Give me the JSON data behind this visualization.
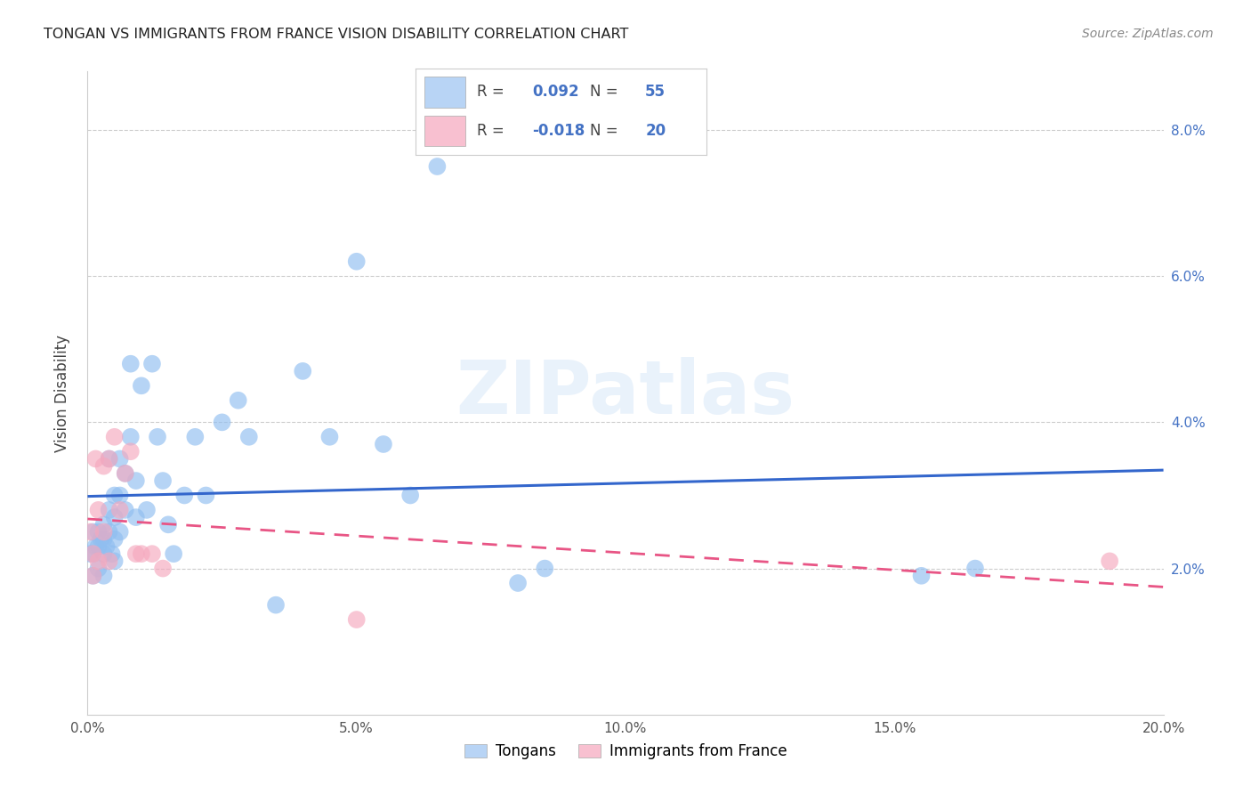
{
  "title": "TONGAN VS IMMIGRANTS FROM FRANCE VISION DISABILITY CORRELATION CHART",
  "source": "Source: ZipAtlas.com",
  "ylabel": "Vision Disability",
  "xlim": [
    0.0,
    0.2
  ],
  "ylim": [
    0.0,
    0.088
  ],
  "xticks": [
    0.0,
    0.05,
    0.1,
    0.15,
    0.2
  ],
  "xtick_labels": [
    "0.0%",
    "5.0%",
    "10.0%",
    "15.0%",
    "20.0%"
  ],
  "yticks": [
    0.0,
    0.02,
    0.04,
    0.06,
    0.08
  ],
  "ytick_labels_left": [
    "",
    "",
    "",
    "",
    ""
  ],
  "ytick_labels_right": [
    "",
    "2.0%",
    "4.0%",
    "6.0%",
    "8.0%"
  ],
  "blue_scatter_color": "#90BEF0",
  "pink_scatter_color": "#F5A8BE",
  "blue_line_color": "#3366CC",
  "pink_line_color": "#E85585",
  "legend_blue_fill": "#B8D4F5",
  "legend_pink_fill": "#F8C0D0",
  "R_blue": "0.092",
  "N_blue": "55",
  "R_pink": "-0.018",
  "N_pink": "20",
  "watermark": "ZIPatlas",
  "grid_color": "#CCCCCC",
  "background": "#FFFFFF",
  "tongans_x": [
    0.0005,
    0.001,
    0.001,
    0.001,
    0.0015,
    0.002,
    0.002,
    0.002,
    0.0025,
    0.003,
    0.003,
    0.003,
    0.003,
    0.0035,
    0.004,
    0.004,
    0.004,
    0.0045,
    0.005,
    0.005,
    0.005,
    0.005,
    0.006,
    0.006,
    0.006,
    0.007,
    0.007,
    0.008,
    0.008,
    0.009,
    0.009,
    0.01,
    0.011,
    0.012,
    0.013,
    0.014,
    0.015,
    0.016,
    0.018,
    0.02,
    0.022,
    0.025,
    0.028,
    0.03,
    0.035,
    0.04,
    0.045,
    0.05,
    0.055,
    0.06,
    0.065,
    0.08,
    0.085,
    0.155,
    0.165
  ],
  "tongans_y": [
    0.022,
    0.025,
    0.022,
    0.019,
    0.023,
    0.025,
    0.023,
    0.02,
    0.024,
    0.026,
    0.024,
    0.022,
    0.019,
    0.023,
    0.035,
    0.028,
    0.025,
    0.022,
    0.03,
    0.027,
    0.024,
    0.021,
    0.035,
    0.03,
    0.025,
    0.033,
    0.028,
    0.048,
    0.038,
    0.032,
    0.027,
    0.045,
    0.028,
    0.048,
    0.038,
    0.032,
    0.026,
    0.022,
    0.03,
    0.038,
    0.03,
    0.04,
    0.043,
    0.038,
    0.015,
    0.047,
    0.038,
    0.062,
    0.037,
    0.03,
    0.075,
    0.018,
    0.02,
    0.019,
    0.02
  ],
  "france_x": [
    0.0005,
    0.001,
    0.001,
    0.0015,
    0.002,
    0.002,
    0.003,
    0.003,
    0.004,
    0.004,
    0.005,
    0.006,
    0.007,
    0.008,
    0.009,
    0.01,
    0.012,
    0.014,
    0.05,
    0.19
  ],
  "france_y": [
    0.025,
    0.022,
    0.019,
    0.035,
    0.028,
    0.021,
    0.034,
    0.025,
    0.035,
    0.021,
    0.038,
    0.028,
    0.033,
    0.036,
    0.022,
    0.022,
    0.022,
    0.02,
    0.013,
    0.021
  ]
}
